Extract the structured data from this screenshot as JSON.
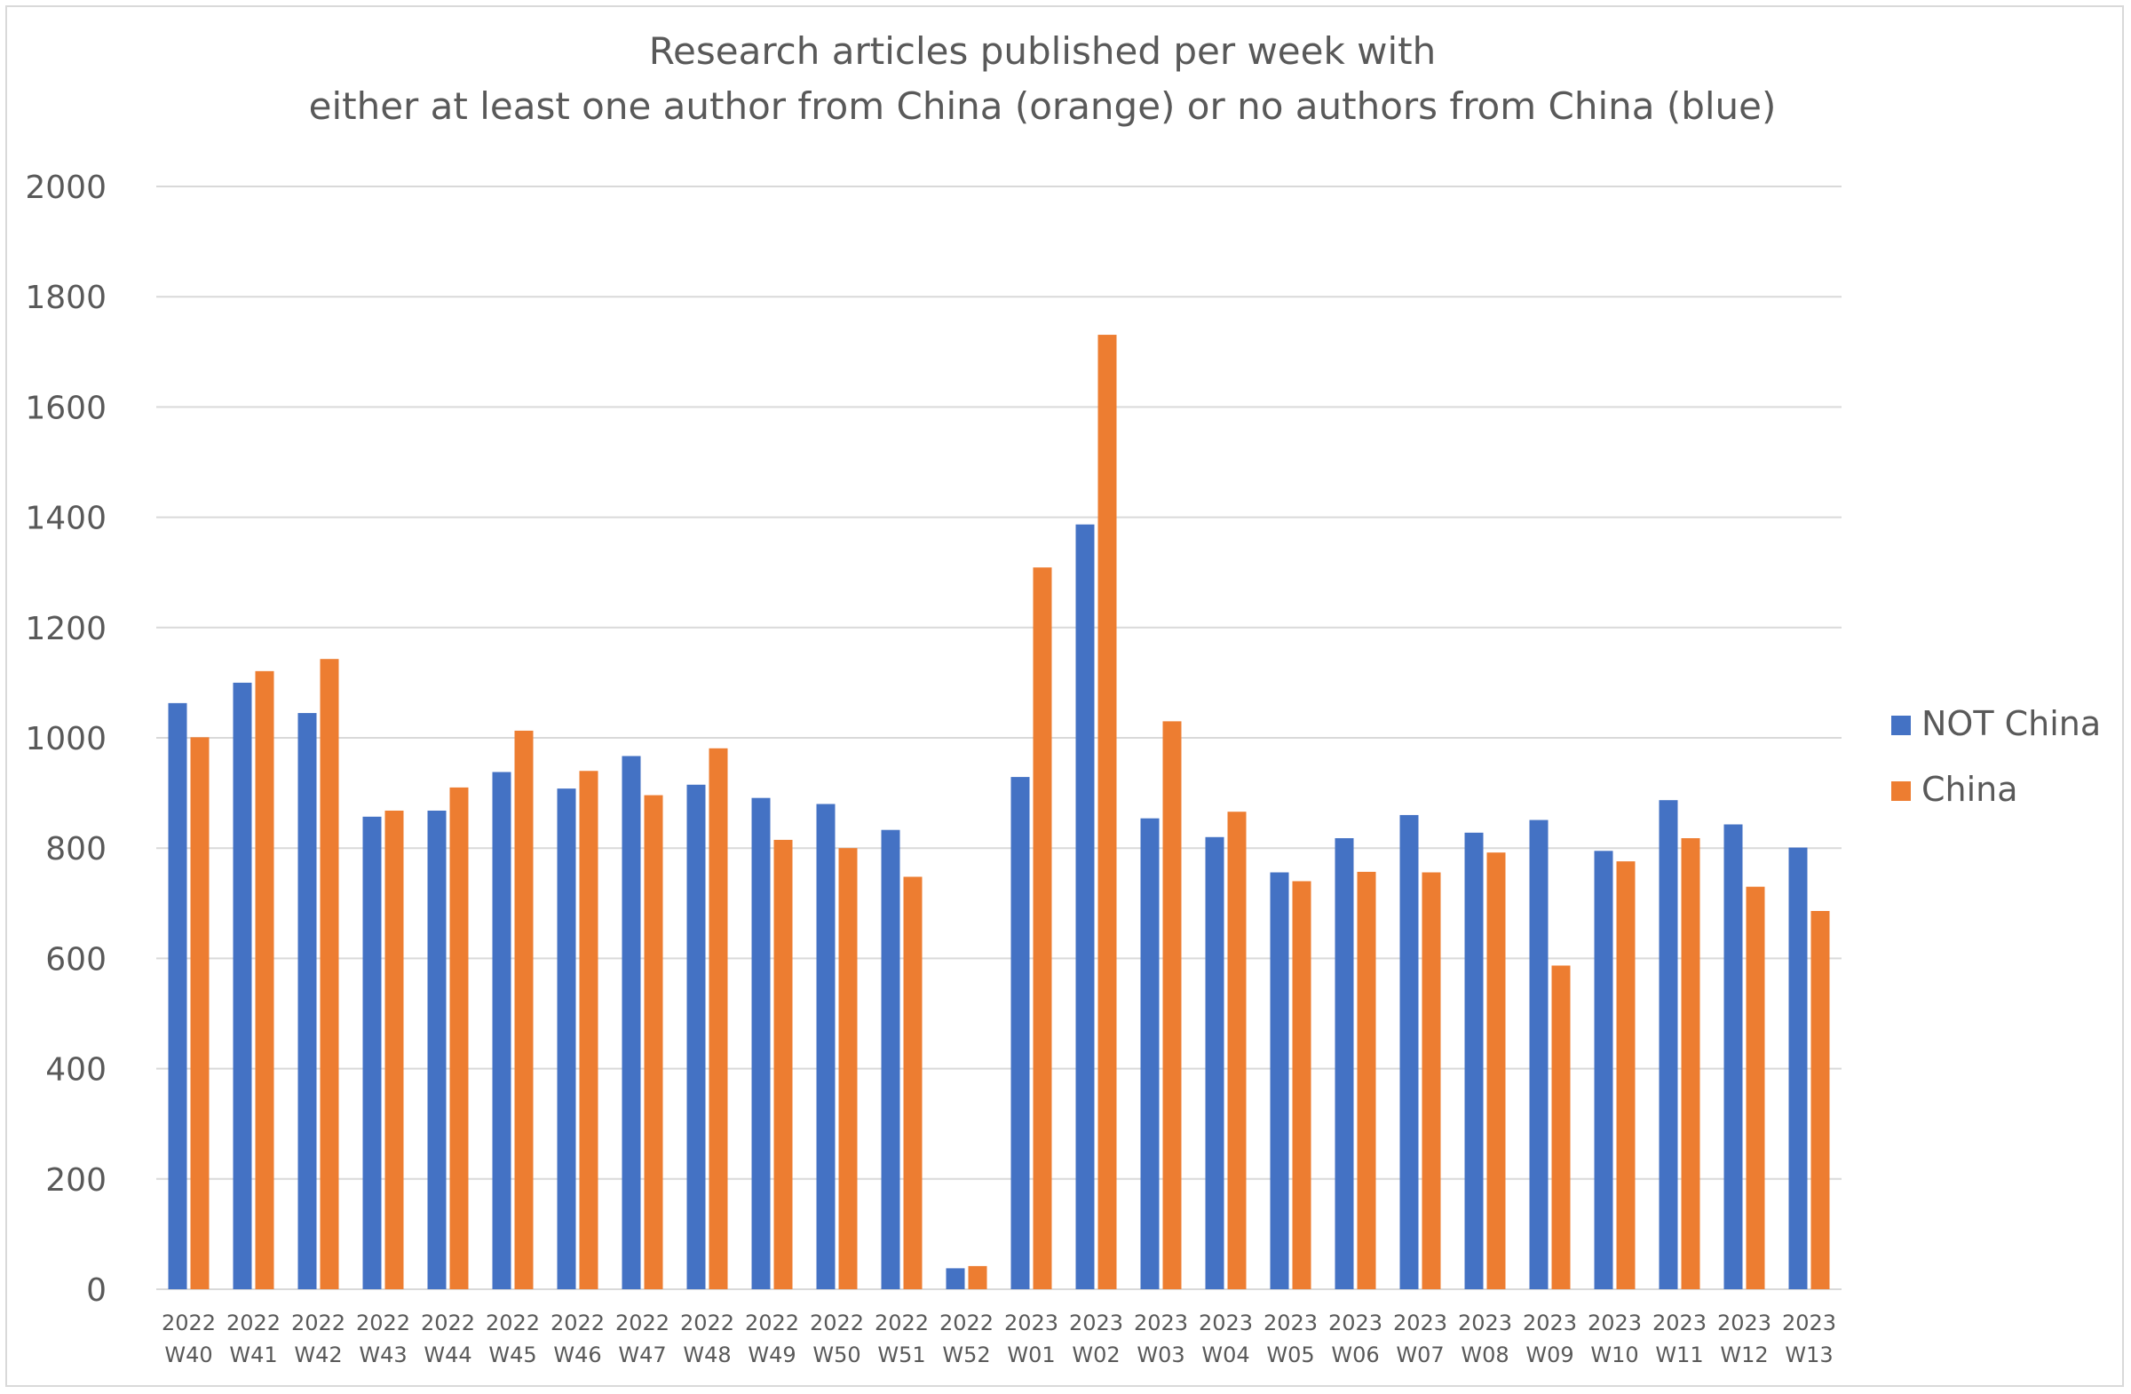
{
  "chart_data": {
    "type": "bar",
    "title": [
      "Research articles published per week with",
      "either at least one author from China (orange) or no authors from China (blue)"
    ],
    "xlabel": "",
    "ylabel": "",
    "ylim": [
      0,
      2000
    ],
    "yticks": [
      "0",
      "200",
      "400",
      "600",
      "800",
      "1000",
      "1200",
      "1400",
      "1600",
      "1800",
      "2000"
    ],
    "grid": true,
    "legend_position": "right",
    "categories": [
      [
        "2022",
        "W40"
      ],
      [
        "2022",
        "W41"
      ],
      [
        "2022",
        "W42"
      ],
      [
        "2022",
        "W43"
      ],
      [
        "2022",
        "W44"
      ],
      [
        "2022",
        "W45"
      ],
      [
        "2022",
        "W46"
      ],
      [
        "2022",
        "W47"
      ],
      [
        "2022",
        "W48"
      ],
      [
        "2022",
        "W49"
      ],
      [
        "2022",
        "W50"
      ],
      [
        "2022",
        "W51"
      ],
      [
        "2022",
        "W52"
      ],
      [
        "2023",
        "W01"
      ],
      [
        "2023",
        "W02"
      ],
      [
        "2023",
        "W03"
      ],
      [
        "2023",
        "W04"
      ],
      [
        "2023",
        "W05"
      ],
      [
        "2023",
        "W06"
      ],
      [
        "2023",
        "W07"
      ],
      [
        "2023",
        "W08"
      ],
      [
        "2023",
        "W09"
      ],
      [
        "2023",
        "W10"
      ],
      [
        "2023",
        "W11"
      ],
      [
        "2023",
        "W12"
      ],
      [
        "2023",
        "W13"
      ]
    ],
    "series": [
      {
        "name": "NOT China",
        "color": "#4472c4",
        "values": [
          1063,
          1100,
          1045,
          857,
          868,
          938,
          908,
          967,
          915,
          891,
          880,
          833,
          38,
          929,
          1387,
          854,
          820,
          756,
          818,
          860,
          828,
          851,
          795,
          887,
          843,
          801
        ]
      },
      {
        "name": "China",
        "color": "#ed7d31",
        "values": [
          1001,
          1121,
          1143,
          868,
          910,
          1013,
          940,
          896,
          981,
          815,
          800,
          748,
          42,
          1309,
          1731,
          1030,
          866,
          740,
          757,
          756,
          792,
          587,
          776,
          818,
          730,
          686
        ]
      }
    ]
  }
}
